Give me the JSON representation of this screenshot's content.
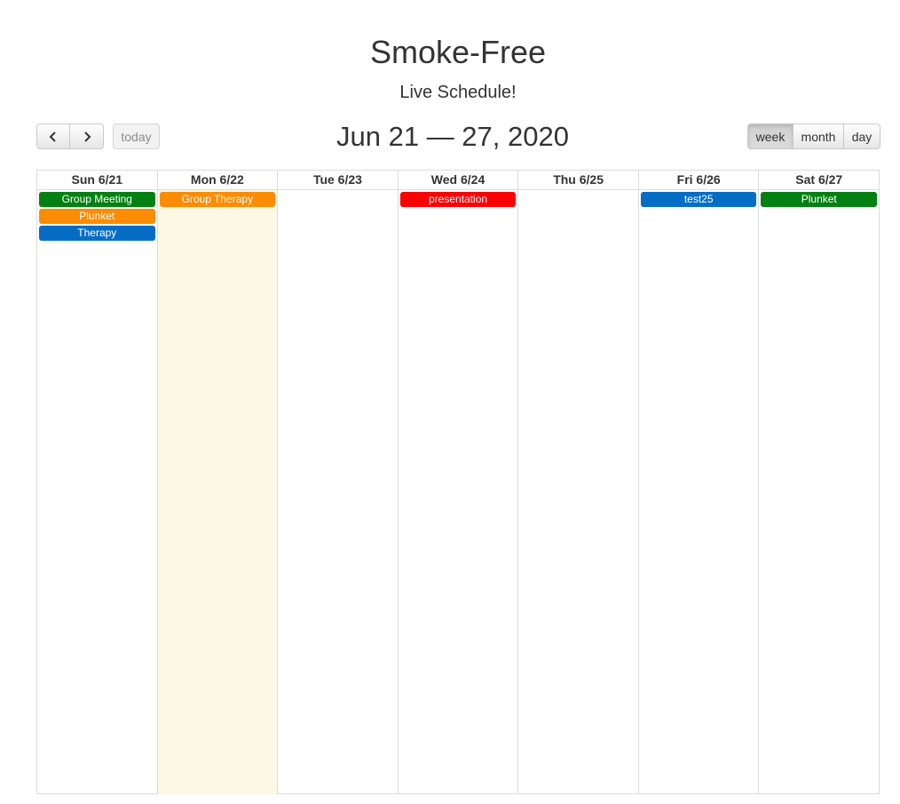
{
  "header": {
    "title": "Smoke-Free",
    "subtitle": "Live Schedule!"
  },
  "toolbar": {
    "today_label": "today",
    "range_title": "Jun 21 — 27, 2020",
    "views": [
      "week",
      "month",
      "day"
    ],
    "active_view": "week"
  },
  "calendar": {
    "days": [
      {
        "label": "Sun 6/21",
        "events": [
          {
            "title": "Group Meeting",
            "color": "#048012"
          },
          {
            "title": "Plunket",
            "color": "#fb8c03"
          },
          {
            "title": "Therapy",
            "color": "#066dc5"
          }
        ]
      },
      {
        "label": "Mon 6/22",
        "today": true,
        "events": [
          {
            "title": "Group Therapy",
            "color": "#fb8c03"
          }
        ]
      },
      {
        "label": "Tue 6/23",
        "events": []
      },
      {
        "label": "Wed 6/24",
        "events": [
          {
            "title": "presentation",
            "color": "#fb0304"
          }
        ]
      },
      {
        "label": "Thu 6/25",
        "events": []
      },
      {
        "label": "Fri 6/26",
        "events": [
          {
            "title": "test25",
            "color": "#066dc5"
          }
        ]
      },
      {
        "label": "Sat 6/27",
        "events": [
          {
            "title": "Plunket",
            "color": "#048012"
          }
        ]
      }
    ],
    "today_highlight_color": "#fcf8e3"
  }
}
